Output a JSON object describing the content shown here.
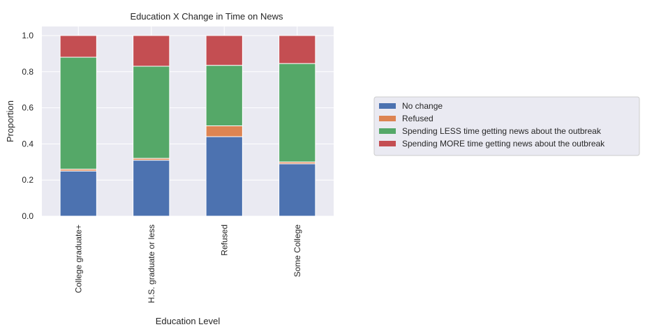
{
  "chart_data": {
    "type": "bar",
    "stacked": true,
    "title": "Education X Change in Time on News",
    "xlabel": "Education Level",
    "ylabel": "Proportion",
    "ylim": [
      0,
      1.05
    ],
    "yticks": [
      "0.0",
      "0.2",
      "0.4",
      "0.6",
      "0.8",
      "1.0"
    ],
    "categories": [
      "College graduate+",
      "H.S. graduate or less",
      "Refused",
      "Some College"
    ],
    "grid": true,
    "legend_position": "right",
    "series": [
      {
        "name": "No change",
        "color": "#4c72b0",
        "values": [
          0.25,
          0.31,
          0.44,
          0.29
        ]
      },
      {
        "name": "Refused",
        "color": "#dd8452",
        "values": [
          0.01,
          0.01,
          0.06,
          0.01
        ]
      },
      {
        "name": "Spending LESS time getting news about the outbreak",
        "color": "#55a868",
        "values": [
          0.62,
          0.51,
          0.335,
          0.545
        ]
      },
      {
        "name": "Spending MORE time getting news about the outbreak",
        "color": "#c44e52",
        "values": [
          0.12,
          0.17,
          0.165,
          0.155
        ]
      }
    ]
  }
}
